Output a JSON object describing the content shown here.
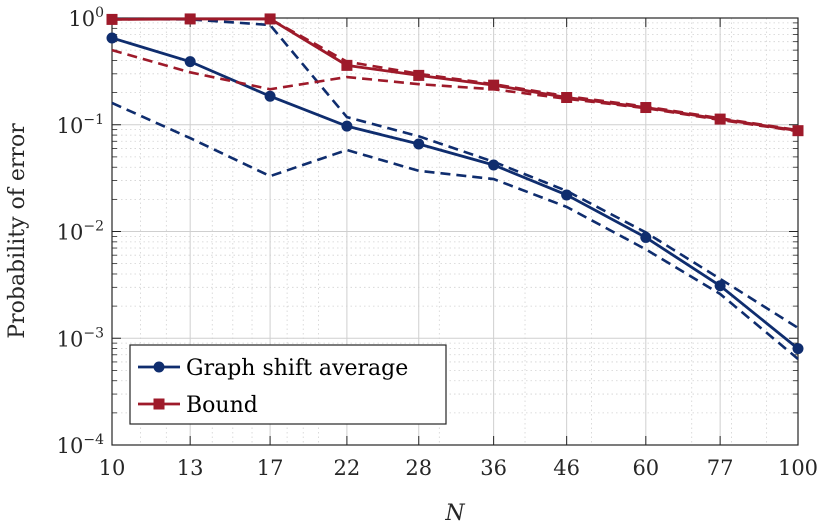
{
  "chart_data": {
    "type": "line",
    "title": "",
    "xlabel": "N",
    "ylabel": "Probability of error",
    "x_scale": "log",
    "y_scale": "log",
    "xlim": [
      10,
      100
    ],
    "ylim": [
      0.0001,
      1
    ],
    "x": [
      10,
      13,
      17,
      22,
      28,
      36,
      46,
      60,
      77,
      100
    ],
    "x_tick_labels": [
      "10",
      "13",
      "17",
      "22",
      "28",
      "36",
      "46",
      "60",
      "77",
      "100"
    ],
    "y_ticks": [
      {
        "base": "10",
        "exp": "0",
        "value": 1
      },
      {
        "base": "10",
        "exp": "−1",
        "value": 0.1
      },
      {
        "base": "10",
        "exp": "−2",
        "value": 0.01
      },
      {
        "base": "10",
        "exp": "−3",
        "value": 0.001
      },
      {
        "base": "10",
        "exp": "−4",
        "value": 0.0001
      }
    ],
    "grid": true,
    "legend_position": "bottom-left",
    "series": [
      {
        "name": "Graph shift average",
        "color": "#0f2d6e",
        "marker": "circle",
        "values": [
          0.65,
          0.39,
          0.185,
          0.097,
          0.066,
          0.042,
          0.022,
          0.0088,
          0.0031,
          0.0008
        ],
        "upper": [
          0.98,
          0.97,
          0.86,
          0.118,
          0.078,
          0.045,
          0.024,
          0.0098,
          0.0036,
          0.00125
        ],
        "lower": [
          0.16,
          0.075,
          0.033,
          0.058,
          0.037,
          0.031,
          0.017,
          0.0068,
          0.0026,
          0.00064
        ]
      },
      {
        "name": "Bound",
        "color": "#9e1a2a",
        "marker": "square",
        "values": [
          0.97,
          0.98,
          0.98,
          0.36,
          0.29,
          0.235,
          0.18,
          0.145,
          0.113,
          0.088
        ],
        "upper": [
          0.97,
          0.98,
          0.98,
          0.39,
          0.3,
          0.24,
          0.185,
          0.148,
          0.115,
          0.089
        ],
        "lower": [
          0.5,
          0.31,
          0.215,
          0.28,
          0.24,
          0.215,
          0.175,
          0.143,
          0.111,
          0.087
        ]
      }
    ]
  }
}
